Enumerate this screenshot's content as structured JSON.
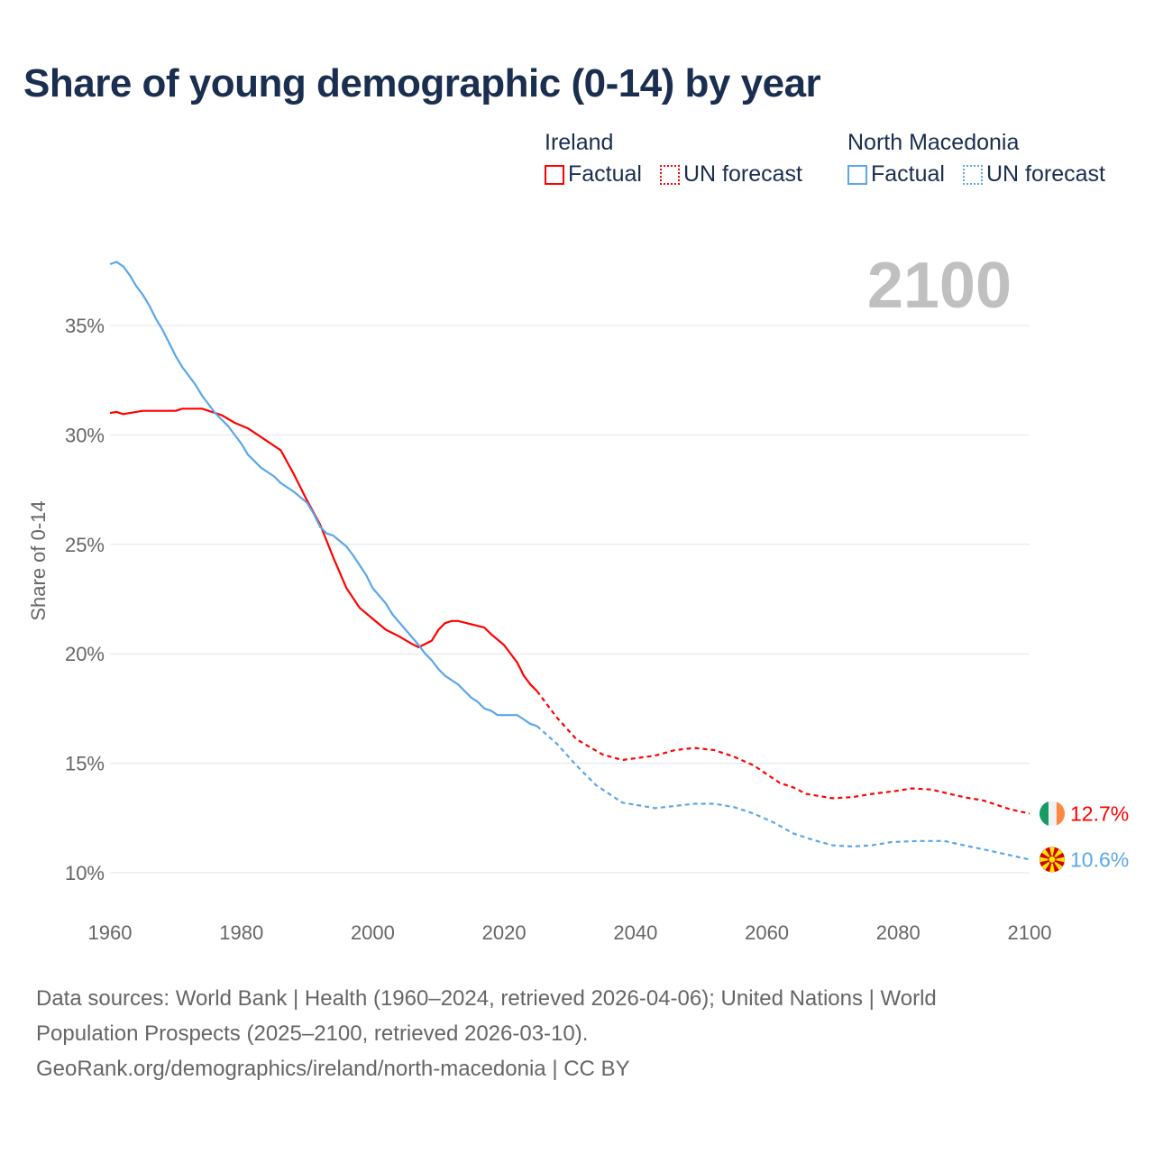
{
  "chart_data": {
    "type": "line",
    "title": "Share of young demographic (0-14) by year",
    "ylabel": "Share of 0-14",
    "xlabel": "",
    "xlim": [
      1960,
      2100
    ],
    "ylim": [
      10,
      37
    ],
    "x_ticks": [
      1960,
      1980,
      2000,
      2020,
      2040,
      2060,
      2080,
      2100
    ],
    "y_ticks": [
      10,
      15,
      20,
      25,
      30,
      35
    ],
    "y_tick_labels": [
      "10%",
      "15%",
      "20%",
      "25%",
      "30%",
      "35%"
    ],
    "grid": true,
    "year_overlay": "2100",
    "legend": {
      "placement": "top-right",
      "groups": [
        {
          "country": "Ireland",
          "items": [
            "Factual",
            "UN forecast"
          ],
          "color": "#ff0000"
        },
        {
          "country": "North Macedonia",
          "items": [
            "Factual",
            "UN forecast"
          ],
          "color": "#5aa7ea"
        }
      ]
    },
    "series": [
      {
        "name": "Ireland – Factual",
        "country": "Ireland",
        "color": "#ff0000",
        "style": "solid",
        "x": [
          1960,
          1961,
          1962,
          1965,
          1970,
          1971,
          1974,
          1975,
          1977,
          1979,
          1981,
          1983,
          1986,
          1988,
          1990,
          1992,
          1994,
          1996,
          1998,
          2000,
          2002,
          2004,
          2006,
          2007,
          2009,
          2010,
          2011,
          2012,
          2013,
          2015,
          2017,
          2018,
          2020,
          2022,
          2023,
          2024,
          2025
        ],
        "y": [
          31.0,
          31.05,
          30.95,
          31.1,
          31.1,
          31.2,
          31.2,
          31.1,
          30.9,
          30.55,
          30.3,
          29.9,
          29.3,
          28.2,
          27.0,
          25.9,
          24.4,
          23.0,
          22.1,
          21.6,
          21.1,
          20.8,
          20.45,
          20.3,
          20.6,
          21.1,
          21.4,
          21.5,
          21.5,
          21.35,
          21.2,
          20.9,
          20.4,
          19.6,
          19.0,
          18.6,
          18.3
        ]
      },
      {
        "name": "Ireland – UN forecast",
        "country": "Ireland",
        "color": "#ff0000",
        "style": "dashed",
        "x": [
          2025,
          2028,
          2031,
          2035,
          2038,
          2043,
          2046,
          2049,
          2052,
          2055,
          2058,
          2062,
          2064,
          2066,
          2070,
          2073,
          2076,
          2080,
          2082,
          2085,
          2090,
          2093,
          2097,
          2100
        ],
        "y": [
          18.3,
          17.1,
          16.1,
          15.4,
          15.15,
          15.35,
          15.6,
          15.7,
          15.6,
          15.3,
          14.9,
          14.1,
          13.9,
          13.6,
          13.4,
          13.45,
          13.6,
          13.75,
          13.85,
          13.8,
          13.45,
          13.3,
          12.9,
          12.7
        ]
      },
      {
        "name": "North Macedonia – Factual",
        "country": "North Macedonia",
        "color": "#5aa7ea",
        "style": "solid",
        "x": [
          1960,
          1961,
          1962,
          1963,
          1964,
          1965,
          1966,
          1967,
          1968,
          1969,
          1970,
          1971,
          1972,
          1973,
          1974,
          1975,
          1976,
          1978,
          1980,
          1981,
          1983,
          1985,
          1986,
          1988,
          1990,
          1991,
          1992,
          1993,
          1994,
          1996,
          1997,
          1999,
          2000,
          2002,
          2003,
          2005,
          2007,
          2008,
          2009,
          2010,
          2011,
          2013,
          2014,
          2015,
          2016,
          2017,
          2018,
          2019,
          2022,
          2023,
          2024,
          2025
        ],
        "y": [
          37.8,
          37.9,
          37.7,
          37.3,
          36.8,
          36.4,
          35.9,
          35.3,
          34.8,
          34.2,
          33.6,
          33.1,
          32.7,
          32.3,
          31.8,
          31.4,
          31.0,
          30.4,
          29.6,
          29.1,
          28.5,
          28.1,
          27.8,
          27.4,
          26.9,
          26.4,
          25.8,
          25.5,
          25.4,
          24.9,
          24.5,
          23.6,
          23.0,
          22.3,
          21.8,
          21.1,
          20.4,
          20.0,
          19.7,
          19.3,
          19.0,
          18.6,
          18.3,
          18.0,
          17.8,
          17.5,
          17.4,
          17.2,
          17.2,
          17.0,
          16.8,
          16.7
        ]
      },
      {
        "name": "North Macedonia – UN forecast",
        "country": "North Macedonia",
        "color": "#5aa7ea",
        "style": "dashed",
        "x": [
          2025,
          2028,
          2031,
          2034,
          2036,
          2038,
          2040,
          2043,
          2046,
          2049,
          2052,
          2055,
          2058,
          2061,
          2064,
          2067,
          2070,
          2073,
          2076,
          2079,
          2083,
          2087,
          2090,
          2094,
          2097,
          2100
        ],
        "y": [
          16.7,
          15.9,
          14.9,
          14.0,
          13.6,
          13.2,
          13.1,
          12.95,
          13.05,
          13.15,
          13.15,
          13.0,
          12.7,
          12.3,
          11.8,
          11.5,
          11.25,
          11.2,
          11.25,
          11.4,
          11.45,
          11.45,
          11.25,
          11.0,
          10.8,
          10.6
        ]
      }
    ],
    "end_labels": [
      {
        "country": "Ireland",
        "label": "12.7%",
        "value": 12.7,
        "color": "#ff0000"
      },
      {
        "country": "North Macedonia",
        "label": "10.6%",
        "value": 10.6,
        "color": "#5aa7ea"
      }
    ]
  },
  "footer": {
    "line1": "Data sources: World Bank | Health (1960–2024, retrieved 2026-04-06); United Nations | World",
    "line2": "Population Prospects (2025–2100, retrieved 2026-03-10).",
    "line3": "GeoRank.org/demographics/ireland/north-macedonia | CC BY"
  }
}
